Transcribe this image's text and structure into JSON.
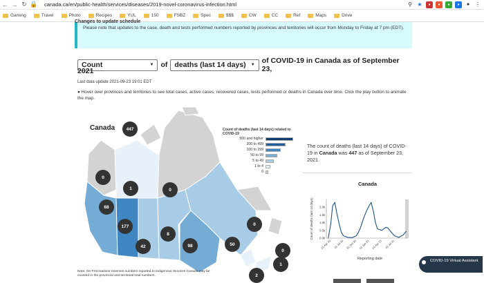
{
  "browser": {
    "url": "canada.ca/en/public-health/services/diseases/2019-novel-coronavirus-infection.html",
    "bookmarks": [
      "Gaming",
      "Travel",
      "Photo",
      "Recipes",
      "YUL",
      "150",
      "FSBZ",
      "Spec",
      "$$$",
      "CW",
      "CC",
      "Ref",
      "Maps",
      "Drive"
    ]
  },
  "notice": {
    "title": "Changes to update schedule",
    "text": "Please note that updates to the case, death and tests performed numbers reported by provinces and territories will occur from Monday to Friday at 7 pm (EDT)."
  },
  "controls": {
    "count_select": "Count",
    "of_label": "of",
    "measure_select": "deaths (last 14 days)",
    "heading_tail": "of COVID-19 in Canada as of September 23,",
    "heading_line2": "2021"
  },
  "last_update": "Last data update 2021-09-23 19:01 EDT",
  "hover_note": "Hover over provinces and territories to see total cases, active cases, recovered cases, tests performed or deaths in Canada over time. Click the play button to animate the map.",
  "map": {
    "title": "Canada",
    "canada_total": "447",
    "bubbles": [
      {
        "label": "0",
        "name": "yukon"
      },
      {
        "label": "1",
        "name": "nwt"
      },
      {
        "label": "0",
        "name": "nunavut"
      },
      {
        "label": "68",
        "name": "bc"
      },
      {
        "label": "177",
        "name": "alberta"
      },
      {
        "label": "42",
        "name": "saskatchewan"
      },
      {
        "label": "8",
        "name": "manitoba"
      },
      {
        "label": "98",
        "name": "ontario"
      },
      {
        "label": "50",
        "name": "quebec"
      },
      {
        "label": "0",
        "name": "nl"
      },
      {
        "label": "0",
        "name": "pei"
      },
      {
        "label": "1",
        "name": "ns"
      },
      {
        "label": "2",
        "name": "nb"
      }
    ]
  },
  "legend": {
    "title": "Count of deaths (last 14 days) related to COVID-19",
    "rows": [
      {
        "label": "500 and higher",
        "color": "#0b3d73",
        "fill": 1.0
      },
      {
        "label": "300 to 499",
        "color": "#1f5fa0",
        "fill": 0.72
      },
      {
        "label": "100 to 299",
        "color": "#3f86c3",
        "fill": 0.55
      },
      {
        "label": "50 to 99",
        "color": "#74acd6",
        "fill": 0.42
      },
      {
        "label": "5 to 49",
        "color": "#a8cbe6",
        "fill": 0.3
      },
      {
        "label": "1 to 4",
        "color": "#e8f1fa",
        "fill": 0.18
      },
      {
        "label": "0",
        "color": "#d3d3d3",
        "fill": 0.1
      }
    ]
  },
  "summary": {
    "text_prefix": "The count of deaths (last 14 days) of COVID-19 in ",
    "place": "Canada",
    "text_mid": " was ",
    "value": "447",
    "text_suffix": " as of September 23, 2021."
  },
  "chart_data": {
    "type": "line",
    "title": "Canada",
    "xlabel": "Reporting date",
    "ylabel": "Count of deaths (last 14 days)",
    "ylim": [
      0,
      2500
    ],
    "yticks": [
      "0.0k",
      "0.5k",
      "1.0k",
      "1.5k",
      "2.0k"
    ],
    "xticks": [
      "01 Apr 20",
      "01 Jul 20",
      "01 Oct 20",
      "01 Jan 21",
      "01 Apr 21",
      "01 Jul 21"
    ],
    "series": [
      {
        "x": [
          "2020-03-15",
          "2020-04-01",
          "2020-04-15",
          "2020-05-01",
          "2020-05-15",
          "2020-06-01",
          "2020-06-15",
          "2020-07-01",
          "2020-08-01",
          "2020-09-01",
          "2020-10-01",
          "2020-10-15",
          "2020-11-01",
          "2020-11-15",
          "2020-12-01",
          "2020-12-15",
          "2021-01-01",
          "2021-01-15",
          "2021-02-01",
          "2021-02-15",
          "2021-03-01",
          "2021-04-01",
          "2021-04-15",
          "2021-05-01",
          "2021-05-15",
          "2021-06-01",
          "2021-07-01",
          "2021-08-01",
          "2021-09-01",
          "2021-09-23"
        ],
        "values": [
          20,
          900,
          2100,
          2300,
          1600,
          900,
          400,
          150,
          50,
          30,
          150,
          350,
          700,
          1100,
          1500,
          1800,
          2100,
          2300,
          1700,
          1000,
          600,
          500,
          600,
          700,
          650,
          450,
          150,
          50,
          200,
          447
        ]
      }
    ]
  },
  "footnote": "Note: On First Nations reserves numbers reported to Indigenous Services Canada may be counted in the provincial and territorial total numbers.",
  "virtual_assistant": "COVID-19 Virtual Assistant"
}
